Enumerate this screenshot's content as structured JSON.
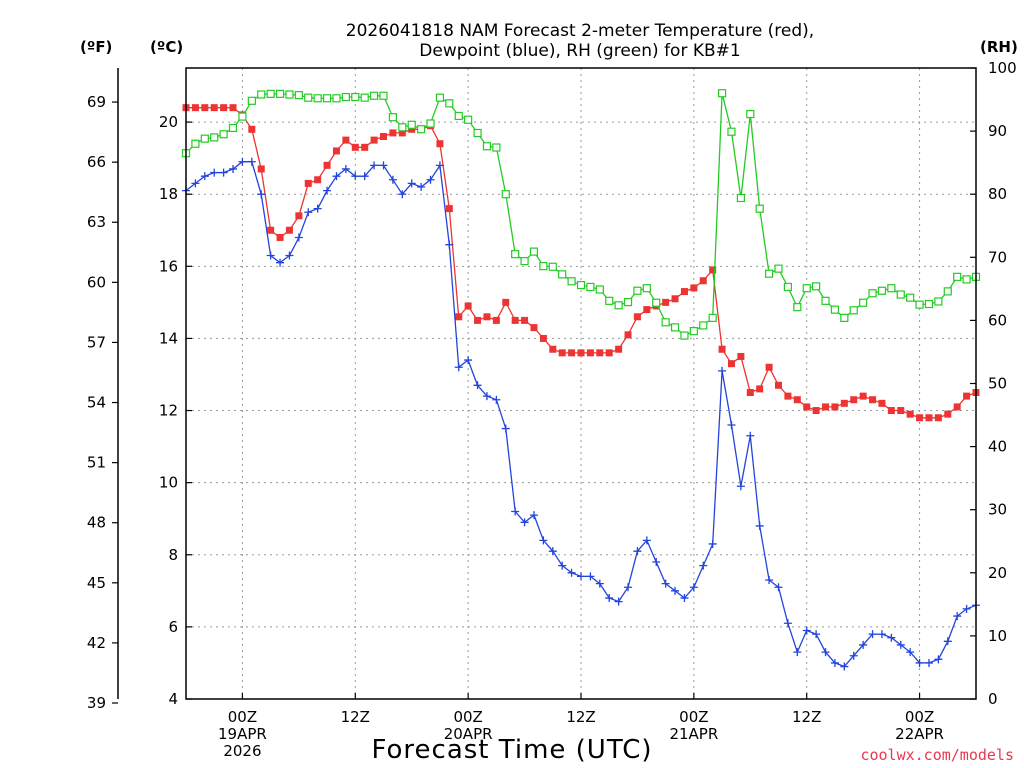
{
  "title_line1": "2026041818 NAM Forecast 2-meter Temperature (red),",
  "title_line2": "Dewpoint (blue), RH (green) for KB#1",
  "left_unit_f": "(ºF)",
  "left_unit_c": "(ºC)",
  "right_unit": "(RH)",
  "xlabel": "Forecast Time (UTC)",
  "credit": "coolwx.com/models",
  "chart_data": {
    "type": "line",
    "x_unit": "forecast hour (from 2026-04-18 18Z)",
    "xlim": [
      0,
      84
    ],
    "x_tick_hours": [
      6,
      18,
      30,
      42,
      54,
      66,
      78
    ],
    "x_tick_labels": [
      [
        "00Z",
        "19APR",
        "2026"
      ],
      [
        "12Z"
      ],
      [
        "00Z",
        "20APR"
      ],
      [
        "12Z"
      ],
      [
        "00Z",
        "21APR"
      ],
      [
        "12Z"
      ],
      [
        "00Z",
        "22APR"
      ]
    ],
    "y_left_c": {
      "label": "(ºC)",
      "lim": [
        4,
        21.5
      ],
      "ticks": [
        4,
        6,
        8,
        10,
        12,
        14,
        16,
        18,
        20
      ]
    },
    "y_left_f": {
      "label": "(ºF)",
      "ticks": [
        39,
        42,
        45,
        48,
        51,
        54,
        57,
        60,
        63,
        66,
        69
      ]
    },
    "y_right_rh": {
      "label": "(RH)",
      "lim": [
        0,
        100
      ],
      "ticks": [
        0,
        10,
        20,
        30,
        40,
        50,
        60,
        70,
        80,
        90,
        100
      ]
    },
    "grid": true,
    "series": [
      {
        "name": "Temperature",
        "color": "#ee3333",
        "marker": "filled-square",
        "axis": "celsius",
        "values": [
          [
            0,
            20.4
          ],
          [
            1,
            20.4
          ],
          [
            2,
            20.4
          ],
          [
            3,
            20.4
          ],
          [
            4,
            20.4
          ],
          [
            5,
            20.4
          ],
          [
            6,
            20.2
          ],
          [
            7,
            19.8
          ],
          [
            8,
            18.7
          ],
          [
            9,
            17.0
          ],
          [
            10,
            16.8
          ],
          [
            11,
            17.0
          ],
          [
            12,
            17.4
          ],
          [
            13,
            18.3
          ],
          [
            14,
            18.4
          ],
          [
            15,
            18.8
          ],
          [
            16,
            19.2
          ],
          [
            17,
            19.5
          ],
          [
            18,
            19.3
          ],
          [
            19,
            19.3
          ],
          [
            20,
            19.5
          ],
          [
            21,
            19.6
          ],
          [
            22,
            19.7
          ],
          [
            23,
            19.7
          ],
          [
            24,
            19.8
          ],
          [
            25,
            19.8
          ],
          [
            26,
            19.9
          ],
          [
            27,
            19.4
          ],
          [
            28,
            17.6
          ],
          [
            29,
            14.6
          ],
          [
            30,
            14.9
          ],
          [
            31,
            14.5
          ],
          [
            32,
            14.6
          ],
          [
            33,
            14.5
          ],
          [
            34,
            15.0
          ],
          [
            35,
            14.5
          ],
          [
            36,
            14.5
          ],
          [
            37,
            14.3
          ],
          [
            38,
            14.0
          ],
          [
            39,
            13.7
          ],
          [
            40,
            13.6
          ],
          [
            41,
            13.6
          ],
          [
            42,
            13.6
          ],
          [
            43,
            13.6
          ],
          [
            44,
            13.6
          ],
          [
            45,
            13.6
          ],
          [
            46,
            13.7
          ],
          [
            47,
            14.1
          ],
          [
            48,
            14.6
          ],
          [
            49,
            14.8
          ],
          [
            50,
            14.9
          ],
          [
            51,
            15.0
          ],
          [
            52,
            15.1
          ],
          [
            53,
            15.3
          ],
          [
            54,
            15.4
          ],
          [
            55,
            15.6
          ],
          [
            56,
            15.9
          ],
          [
            57,
            13.7
          ],
          [
            58,
            13.3
          ],
          [
            59,
            13.5
          ],
          [
            60,
            12.5
          ],
          [
            61,
            12.6
          ],
          [
            62,
            13.2
          ],
          [
            63,
            12.7
          ],
          [
            64,
            12.4
          ],
          [
            65,
            12.3
          ],
          [
            66,
            12.1
          ],
          [
            67,
            12.0
          ],
          [
            68,
            12.1
          ],
          [
            69,
            12.1
          ],
          [
            70,
            12.2
          ],
          [
            71,
            12.3
          ],
          [
            72,
            12.4
          ],
          [
            73,
            12.3
          ],
          [
            74,
            12.2
          ],
          [
            75,
            12.0
          ],
          [
            76,
            12.0
          ],
          [
            77,
            11.9
          ],
          [
            78,
            11.8
          ],
          [
            79,
            11.8
          ],
          [
            80,
            11.8
          ],
          [
            81,
            11.9
          ],
          [
            82,
            12.1
          ],
          [
            83,
            12.4
          ],
          [
            84,
            12.5
          ]
        ]
      },
      {
        "name": "Dewpoint",
        "color": "#2244dd",
        "marker": "plus",
        "axis": "celsius",
        "values": [
          [
            0,
            18.1
          ],
          [
            1,
            18.3
          ],
          [
            2,
            18.5
          ],
          [
            3,
            18.6
          ],
          [
            4,
            18.6
          ],
          [
            5,
            18.7
          ],
          [
            6,
            18.9
          ],
          [
            7,
            18.9
          ],
          [
            8,
            18.0
          ],
          [
            9,
            16.3
          ],
          [
            10,
            16.1
          ],
          [
            11,
            16.3
          ],
          [
            12,
            16.8
          ],
          [
            13,
            17.5
          ],
          [
            14,
            17.6
          ],
          [
            15,
            18.1
          ],
          [
            16,
            18.5
          ],
          [
            17,
            18.7
          ],
          [
            18,
            18.5
          ],
          [
            19,
            18.5
          ],
          [
            20,
            18.8
          ],
          [
            21,
            18.8
          ],
          [
            22,
            18.4
          ],
          [
            23,
            18.0
          ],
          [
            24,
            18.3
          ],
          [
            25,
            18.2
          ],
          [
            26,
            18.4
          ],
          [
            27,
            18.8
          ],
          [
            28,
            16.6
          ],
          [
            29,
            13.2
          ],
          [
            30,
            13.4
          ],
          [
            31,
            12.7
          ],
          [
            32,
            12.4
          ],
          [
            33,
            12.3
          ],
          [
            34,
            11.5
          ],
          [
            35,
            9.2
          ],
          [
            36,
            8.9
          ],
          [
            37,
            9.1
          ],
          [
            38,
            8.4
          ],
          [
            39,
            8.1
          ],
          [
            40,
            7.7
          ],
          [
            41,
            7.5
          ],
          [
            42,
            7.4
          ],
          [
            43,
            7.4
          ],
          [
            44,
            7.2
          ],
          [
            45,
            6.8
          ],
          [
            46,
            6.7
          ],
          [
            47,
            7.1
          ],
          [
            48,
            8.1
          ],
          [
            49,
            8.4
          ],
          [
            50,
            7.8
          ],
          [
            51,
            7.2
          ],
          [
            52,
            7.0
          ],
          [
            53,
            6.8
          ],
          [
            54,
            7.1
          ],
          [
            55,
            7.7
          ],
          [
            56,
            8.3
          ],
          [
            57,
            13.1
          ],
          [
            58,
            11.6
          ],
          [
            59,
            9.9
          ],
          [
            60,
            11.3
          ],
          [
            61,
            8.8
          ],
          [
            62,
            7.3
          ],
          [
            63,
            7.1
          ],
          [
            64,
            6.1
          ],
          [
            65,
            5.3
          ],
          [
            66,
            5.9
          ],
          [
            67,
            5.8
          ],
          [
            68,
            5.3
          ],
          [
            69,
            5.0
          ],
          [
            70,
            4.9
          ],
          [
            71,
            5.2
          ],
          [
            72,
            5.5
          ],
          [
            73,
            5.8
          ],
          [
            74,
            5.8
          ],
          [
            75,
            5.7
          ],
          [
            76,
            5.5
          ],
          [
            77,
            5.3
          ],
          [
            78,
            5.0
          ],
          [
            79,
            5.0
          ],
          [
            80,
            5.1
          ],
          [
            81,
            5.6
          ],
          [
            82,
            6.3
          ],
          [
            83,
            6.5
          ],
          [
            84,
            6.6
          ]
        ]
      },
      {
        "name": "RH",
        "color": "#22cc22",
        "marker": "open-square",
        "axis": "rh",
        "values": [
          [
            0,
            86.5
          ],
          [
            1,
            88.0
          ],
          [
            2,
            88.8
          ],
          [
            3,
            89.0
          ],
          [
            4,
            89.5
          ],
          [
            5,
            90.5
          ],
          [
            6,
            92.3
          ],
          [
            7,
            94.8
          ],
          [
            8,
            95.8
          ],
          [
            9,
            95.9
          ],
          [
            10,
            95.9
          ],
          [
            11,
            95.8
          ],
          [
            12,
            95.7
          ],
          [
            13,
            95.3
          ],
          [
            14,
            95.2
          ],
          [
            15,
            95.2
          ],
          [
            16,
            95.2
          ],
          [
            17,
            95.4
          ],
          [
            18,
            95.4
          ],
          [
            19,
            95.3
          ],
          [
            20,
            95.6
          ],
          [
            21,
            95.6
          ],
          [
            22,
            92.2
          ],
          [
            23,
            90.6
          ],
          [
            24,
            91.0
          ],
          [
            25,
            90.3
          ],
          [
            26,
            91.2
          ],
          [
            27,
            95.3
          ],
          [
            28,
            94.4
          ],
          [
            29,
            92.4
          ],
          [
            30,
            91.8
          ],
          [
            31,
            89.7
          ],
          [
            32,
            87.6
          ],
          [
            33,
            87.4
          ],
          [
            34,
            80.0
          ],
          [
            35,
            70.5
          ],
          [
            36,
            69.4
          ],
          [
            37,
            70.9
          ],
          [
            38,
            68.6
          ],
          [
            39,
            68.5
          ],
          [
            40,
            67.3
          ],
          [
            41,
            66.2
          ],
          [
            42,
            65.6
          ],
          [
            43,
            65.3
          ],
          [
            44,
            64.9
          ],
          [
            45,
            63.1
          ],
          [
            46,
            62.4
          ],
          [
            47,
            62.9
          ],
          [
            48,
            64.7
          ],
          [
            49,
            65.1
          ],
          [
            50,
            62.8
          ],
          [
            51,
            59.7
          ],
          [
            52,
            58.9
          ],
          [
            53,
            57.6
          ],
          [
            54,
            58.3
          ],
          [
            55,
            59.2
          ],
          [
            56,
            60.4
          ],
          [
            57,
            96.0
          ],
          [
            58,
            89.9
          ],
          [
            59,
            79.4
          ],
          [
            60,
            92.7
          ],
          [
            61,
            77.7
          ],
          [
            62,
            67.4
          ],
          [
            63,
            68.2
          ],
          [
            64,
            65.3
          ],
          [
            65,
            62.1
          ],
          [
            66,
            65.1
          ],
          [
            67,
            65.4
          ],
          [
            68,
            63.1
          ],
          [
            69,
            61.7
          ],
          [
            70,
            60.4
          ],
          [
            71,
            61.6
          ],
          [
            72,
            62.8
          ],
          [
            73,
            64.3
          ],
          [
            74,
            64.7
          ],
          [
            75,
            65.1
          ],
          [
            76,
            64.1
          ],
          [
            77,
            63.6
          ],
          [
            78,
            62.5
          ],
          [
            79,
            62.6
          ],
          [
            80,
            63.0
          ],
          [
            81,
            64.6
          ],
          [
            82,
            66.9
          ],
          [
            83,
            66.5
          ],
          [
            84,
            66.9
          ]
        ]
      }
    ]
  }
}
